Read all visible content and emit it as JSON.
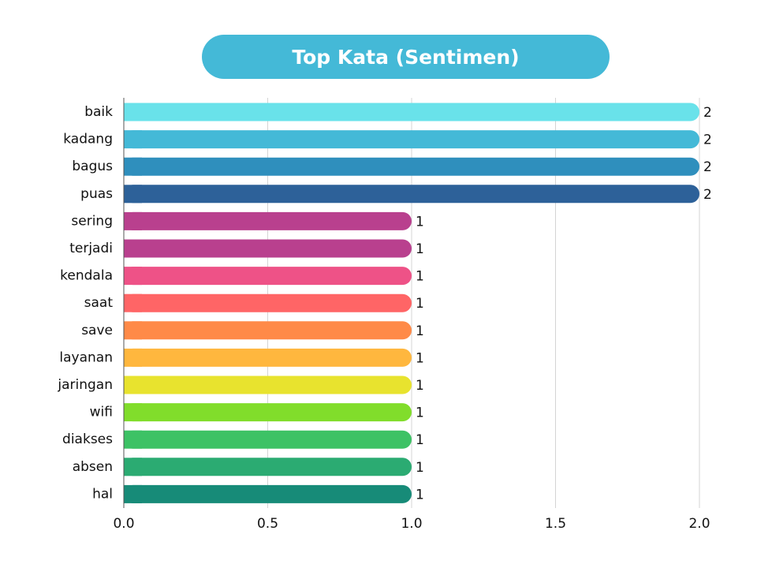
{
  "chart_data": {
    "type": "bar",
    "orientation": "horizontal",
    "title": "Top Kata (Sentimen)",
    "xlabel": "",
    "ylabel": "",
    "xlim": [
      0,
      2.0
    ],
    "x_ticks": [
      "0.0",
      "0.5",
      "1.0",
      "1.5",
      "2.0"
    ],
    "x_tick_values": [
      0,
      0.5,
      1.0,
      1.5,
      2.0
    ],
    "grid": "vertical",
    "categories": [
      "baik",
      "kadang",
      "bagus",
      "puas",
      "sering",
      "terjadi",
      "kendala",
      "saat",
      "save",
      "layanan",
      "jaringan",
      "wifi",
      "diakses",
      "absen",
      "hal"
    ],
    "values": [
      2,
      2,
      2,
      2,
      1,
      1,
      1,
      1,
      1,
      1,
      1,
      1,
      1,
      1,
      1
    ],
    "value_labels": [
      "2",
      "2",
      "2",
      "2",
      "1",
      "1",
      "1",
      "1",
      "1",
      "1",
      "1",
      "1",
      "1",
      "1",
      "1"
    ],
    "colors": [
      "#69e2ea",
      "#44b9d7",
      "#2f8fbd",
      "#2d6199",
      "#b9408e",
      "#b9408e",
      "#ee5287",
      "#ff6566",
      "#ff8a48",
      "#ffb73e",
      "#e8e32e",
      "#81dd2b",
      "#3dc265",
      "#2bab72",
      "#178b78"
    ]
  },
  "colors": {
    "title_bg": "#44b9d7",
    "title_text": "#ffffff",
    "grid": "#d4d4d4",
    "axis": "#555555"
  }
}
